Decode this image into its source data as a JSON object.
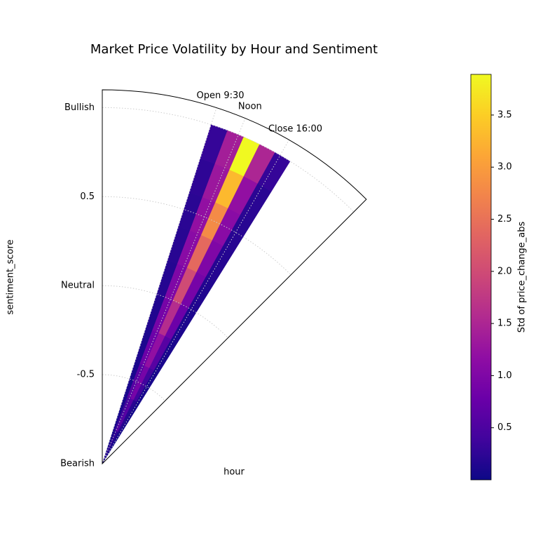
{
  "chart_data": {
    "type": "polar-heatmap",
    "title": "Market Price Volatility by Hour and Sentiment",
    "xlabel": "hour",
    "ylabel": "sentiment_score",
    "colorbar_label": "Std of price_change_abs",
    "colormap": "plasma",
    "xlim": [
      0,
      24
    ],
    "ylim": [
      -1,
      1.1
    ],
    "xticks": [
      {
        "value": 9.5,
        "label": "Open 9:30"
      },
      {
        "value": 12,
        "label": "Noon"
      },
      {
        "value": 16,
        "label": "Close 16:00"
      }
    ],
    "yticks": [
      {
        "value": -1,
        "label": "Bearish"
      },
      -0.5,
      {
        "value": 0,
        "label": "Neutral"
      },
      0.5,
      {
        "value": 1,
        "label": "Bullish"
      }
    ],
    "grid": true,
    "xbins": [
      9.5,
      11,
      12.5,
      14,
      15.5,
      17
    ],
    "ybins": [
      -1,
      -0.8,
      -0.6,
      -0.4,
      -0.2,
      0,
      0.2,
      0.4,
      0.6,
      0.8,
      1
    ],
    "values": [
      [
        0.05,
        0.08,
        0.1,
        0.12,
        0.15,
        0.18,
        0.2,
        0.22,
        0.25,
        0.3
      ],
      [
        0.2,
        0.4,
        0.6,
        0.8,
        0.9,
        1.0,
        1.1,
        1.2,
        1.3,
        1.4
      ],
      [
        0.3,
        0.6,
        0.9,
        1.2,
        1.6,
        2.0,
        2.4,
        2.8,
        3.3,
        3.9
      ],
      [
        0.1,
        0.2,
        0.4,
        0.6,
        0.8,
        0.9,
        1.0,
        1.1,
        1.2,
        1.5
      ],
      [
        0.05,
        0.06,
        0.08,
        0.1,
        0.12,
        0.15,
        0.18,
        0.2,
        0.22,
        0.3
      ]
    ],
    "clim": [
      0,
      3.89
    ],
    "cticks": [
      0.5,
      {
        "value": 1,
        "label": "1.0"
      },
      1.5,
      {
        "value": 2,
        "label": "2.0"
      },
      2.5,
      {
        "value": 3,
        "label": "3.0"
      },
      3.5
    ]
  }
}
